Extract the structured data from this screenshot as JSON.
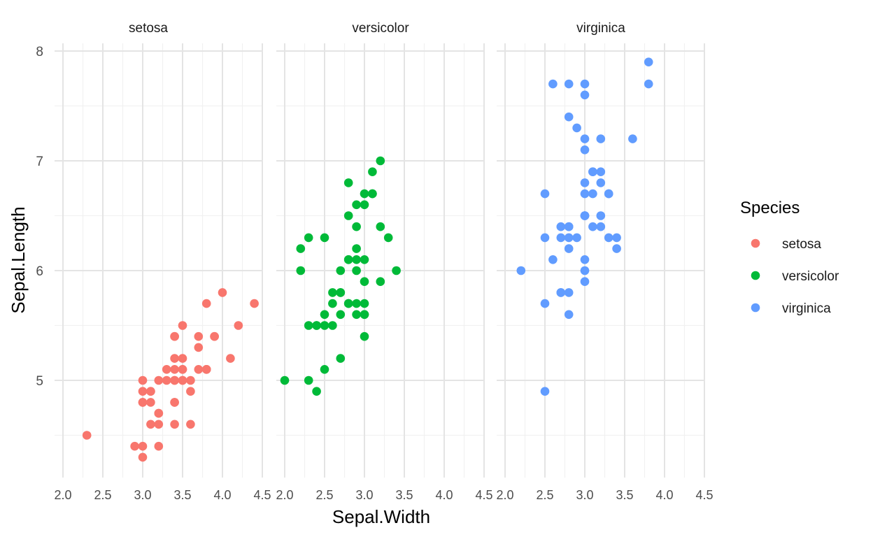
{
  "chart_data": {
    "type": "scatter",
    "xlabel": "Sepal.Width",
    "ylabel": "Sepal.Length",
    "xlim": [
      1.95,
      4.5
    ],
    "ylim": [
      4.15,
      8.0
    ],
    "x_ticks": [
      2.0,
      2.5,
      3.0,
      3.5,
      4.0,
      4.5
    ],
    "x_tick_labels": [
      "2.0",
      "2.5",
      "3.0",
      "3.5",
      "4.0",
      "4.5"
    ],
    "y_ticks": [
      5,
      6,
      7,
      8
    ],
    "y_tick_labels": [
      "5",
      "6",
      "7",
      "8"
    ],
    "grid": true,
    "facet_by": "Species",
    "legend": {
      "title": "Species",
      "position": "right",
      "entries": [
        {
          "label": "setosa",
          "color": "#F8766D"
        },
        {
          "label": "versicolor",
          "color": "#00BA38"
        },
        {
          "label": "virginica",
          "color": "#619CFF"
        }
      ]
    },
    "facets": [
      {
        "title": "setosa",
        "color": "#F8766D",
        "points": [
          [
            3.5,
            5.1
          ],
          [
            3.0,
            4.9
          ],
          [
            3.2,
            4.7
          ],
          [
            3.1,
            4.6
          ],
          [
            3.6,
            5.0
          ],
          [
            3.9,
            5.4
          ],
          [
            3.4,
            4.6
          ],
          [
            3.4,
            5.0
          ],
          [
            2.9,
            4.4
          ],
          [
            3.1,
            4.9
          ],
          [
            3.7,
            5.4
          ],
          [
            3.4,
            4.8
          ],
          [
            3.0,
            4.8
          ],
          [
            3.0,
            4.3
          ],
          [
            4.0,
            5.8
          ],
          [
            4.4,
            5.7
          ],
          [
            3.9,
            5.4
          ],
          [
            3.5,
            5.1
          ],
          [
            3.8,
            5.7
          ],
          [
            3.8,
            5.1
          ],
          [
            3.4,
            5.4
          ],
          [
            3.7,
            5.1
          ],
          [
            3.6,
            4.6
          ],
          [
            3.3,
            5.1
          ],
          [
            3.4,
            4.8
          ],
          [
            3.0,
            5.0
          ],
          [
            3.4,
            5.0
          ],
          [
            3.5,
            5.2
          ],
          [
            3.4,
            5.2
          ],
          [
            3.2,
            4.7
          ],
          [
            3.1,
            4.8
          ],
          [
            3.4,
            5.4
          ],
          [
            4.1,
            5.2
          ],
          [
            4.2,
            5.5
          ],
          [
            3.1,
            4.9
          ],
          [
            3.2,
            5.0
          ],
          [
            3.5,
            5.5
          ],
          [
            3.6,
            4.9
          ],
          [
            3.0,
            4.4
          ],
          [
            3.4,
            5.1
          ],
          [
            3.5,
            5.0
          ],
          [
            2.3,
            4.5
          ],
          [
            3.2,
            4.4
          ],
          [
            3.5,
            5.0
          ],
          [
            3.8,
            5.1
          ],
          [
            3.0,
            4.8
          ],
          [
            3.8,
            5.1
          ],
          [
            3.2,
            4.6
          ],
          [
            3.7,
            5.3
          ],
          [
            3.3,
            5.0
          ]
        ]
      },
      {
        "title": "versicolor",
        "color": "#00BA38",
        "points": [
          [
            3.2,
            7.0
          ],
          [
            3.2,
            6.4
          ],
          [
            3.1,
            6.9
          ],
          [
            2.3,
            5.5
          ],
          [
            2.8,
            6.5
          ],
          [
            2.8,
            5.7
          ],
          [
            3.3,
            6.3
          ],
          [
            2.4,
            4.9
          ],
          [
            2.9,
            6.6
          ],
          [
            2.7,
            5.2
          ],
          [
            2.0,
            5.0
          ],
          [
            3.0,
            5.9
          ],
          [
            2.2,
            6.0
          ],
          [
            2.9,
            6.1
          ],
          [
            2.9,
            5.6
          ],
          [
            3.1,
            6.7
          ],
          [
            3.0,
            5.6
          ],
          [
            2.7,
            5.8
          ],
          [
            2.2,
            6.2
          ],
          [
            2.5,
            5.6
          ],
          [
            3.2,
            5.9
          ],
          [
            2.8,
            6.1
          ],
          [
            2.5,
            6.3
          ],
          [
            2.8,
            6.1
          ],
          [
            2.9,
            6.4
          ],
          [
            3.0,
            6.6
          ],
          [
            2.8,
            6.8
          ],
          [
            3.0,
            6.7
          ],
          [
            2.9,
            6.0
          ],
          [
            2.6,
            5.7
          ],
          [
            2.4,
            5.5
          ],
          [
            2.4,
            5.5
          ],
          [
            2.7,
            5.8
          ],
          [
            2.7,
            6.0
          ],
          [
            3.0,
            5.4
          ],
          [
            3.4,
            6.0
          ],
          [
            3.1,
            6.7
          ],
          [
            2.3,
            6.3
          ],
          [
            3.0,
            5.6
          ],
          [
            2.5,
            5.5
          ],
          [
            2.6,
            5.5
          ],
          [
            3.0,
            6.1
          ],
          [
            2.6,
            5.8
          ],
          [
            2.3,
            5.0
          ],
          [
            2.7,
            5.6
          ],
          [
            3.0,
            5.7
          ],
          [
            2.9,
            5.7
          ],
          [
            2.9,
            6.2
          ],
          [
            2.5,
            5.1
          ],
          [
            2.8,
            5.7
          ]
        ]
      },
      {
        "title": "virginica",
        "color": "#619CFF",
        "points": [
          [
            3.3,
            6.3
          ],
          [
            2.7,
            5.8
          ],
          [
            3.0,
            7.1
          ],
          [
            2.9,
            6.3
          ],
          [
            3.0,
            6.5
          ],
          [
            3.0,
            7.6
          ],
          [
            2.5,
            4.9
          ],
          [
            2.9,
            7.3
          ],
          [
            2.5,
            6.7
          ],
          [
            3.6,
            7.2
          ],
          [
            3.2,
            6.5
          ],
          [
            2.7,
            6.4
          ],
          [
            3.0,
            6.8
          ],
          [
            2.5,
            5.7
          ],
          [
            2.8,
            5.8
          ],
          [
            3.2,
            6.4
          ],
          [
            3.0,
            6.5
          ],
          [
            3.8,
            7.7
          ],
          [
            2.6,
            7.7
          ],
          [
            2.2,
            6.0
          ],
          [
            3.2,
            6.9
          ],
          [
            2.8,
            5.6
          ],
          [
            2.8,
            7.7
          ],
          [
            2.7,
            6.3
          ],
          [
            3.3,
            6.7
          ],
          [
            3.2,
            7.2
          ],
          [
            2.8,
            6.2
          ],
          [
            3.0,
            6.1
          ],
          [
            2.8,
            6.4
          ],
          [
            3.0,
            7.2
          ],
          [
            2.8,
            7.4
          ],
          [
            3.8,
            7.9
          ],
          [
            2.8,
            6.4
          ],
          [
            2.8,
            6.3
          ],
          [
            2.6,
            6.1
          ],
          [
            3.0,
            7.7
          ],
          [
            3.4,
            6.3
          ],
          [
            3.1,
            6.4
          ],
          [
            3.0,
            6.0
          ],
          [
            3.1,
            6.9
          ],
          [
            3.1,
            6.7
          ],
          [
            3.1,
            6.9
          ],
          [
            2.7,
            5.8
          ],
          [
            3.2,
            6.8
          ],
          [
            3.3,
            6.7
          ],
          [
            3.0,
            6.7
          ],
          [
            2.5,
            6.3
          ],
          [
            3.0,
            6.5
          ],
          [
            3.4,
            6.2
          ],
          [
            3.0,
            5.9
          ]
        ]
      }
    ]
  }
}
